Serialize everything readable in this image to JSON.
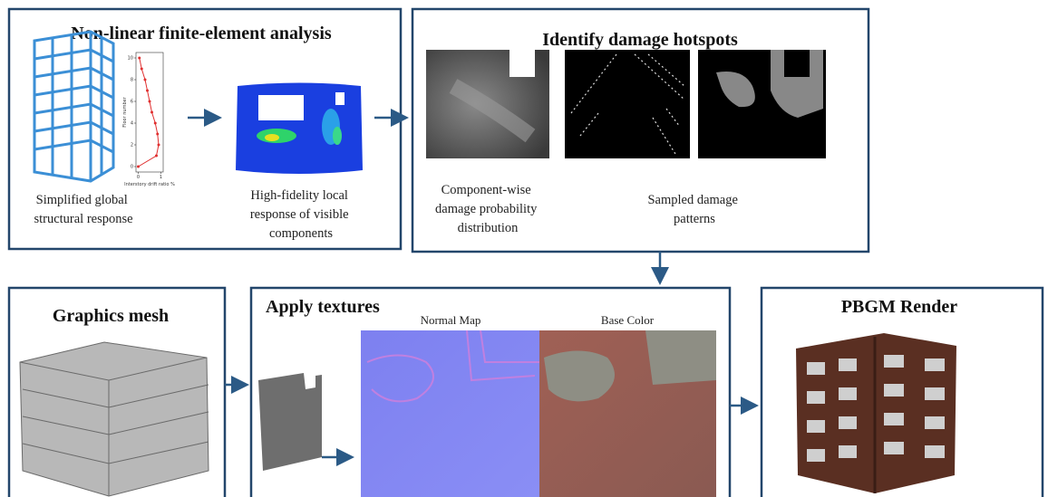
{
  "panels": [
    {
      "title": "Non-linear finite-element analysis",
      "captions": [
        [
          "Simplified global",
          "structural response"
        ],
        [
          "High-fidelity local",
          "response of visible",
          "components"
        ]
      ]
    },
    {
      "title": "Identify damage hotspots",
      "captions": [
        [
          "Component-wise",
          "damage probability",
          "distribution"
        ],
        [
          "Sampled damage",
          "patterns"
        ]
      ]
    },
    {
      "title": "Graphics mesh"
    },
    {
      "title": "Apply textures",
      "captions": [
        [
          "Normal Map"
        ],
        [
          "Base Color"
        ]
      ]
    },
    {
      "title": "PBGM Render"
    }
  ],
  "drift_plot": {
    "y_label": "Floor number",
    "x_label": "Interstory drift ratio %",
    "xlim": [
      -0.1,
      1.1
    ],
    "ylim": [
      -0.5,
      10.5
    ],
    "xticks": [
      0,
      1
    ],
    "yticks": [
      0,
      2,
      4,
      6,
      8,
      10
    ],
    "x": [
      0,
      0.8,
      0.9,
      0.85,
      0.75,
      0.6,
      0.5,
      0.4,
      0.3,
      0.15,
      0.05
    ],
    "y": [
      0,
      1,
      2,
      3,
      4,
      5,
      6,
      7,
      8,
      9,
      10
    ],
    "color": "#e03030"
  }
}
